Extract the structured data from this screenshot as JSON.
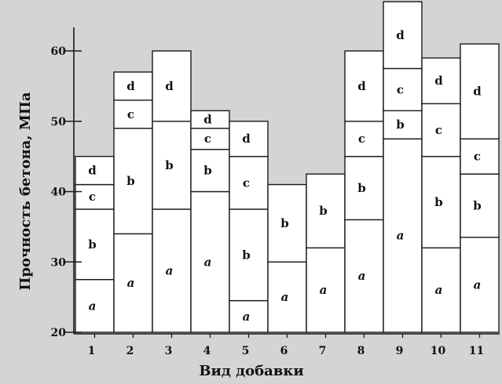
{
  "chart_data": {
    "type": "bar",
    "stacked": true,
    "title": "",
    "xlabel": "Вид добавки",
    "ylabel": "Прочность бетона, МПа",
    "ylim": [
      20,
      67
    ],
    "yticks": [
      20,
      30,
      40,
      50,
      60
    ],
    "categories": [
      "1",
      "2",
      "3",
      "4",
      "5",
      "6",
      "7",
      "8",
      "9",
      "10",
      "11"
    ],
    "stacks": [
      [
        {
          "label": "a",
          "from": 20,
          "to": 27.5
        },
        {
          "label": "b",
          "from": 27.5,
          "to": 37.5
        },
        {
          "label": "c",
          "from": 37.5,
          "to": 41
        },
        {
          "label": "d",
          "from": 41,
          "to": 45
        }
      ],
      [
        {
          "label": "a",
          "from": 20,
          "to": 34
        },
        {
          "label": "b",
          "from": 34,
          "to": 49
        },
        {
          "label": "c",
          "from": 49,
          "to": 53
        },
        {
          "label": "d",
          "from": 53,
          "to": 57
        }
      ],
      [
        {
          "label": "a",
          "from": 20,
          "to": 37.5
        },
        {
          "label": "b",
          "from": 37.5,
          "to": 50
        },
        {
          "label": "d",
          "from": 50,
          "to": 60
        }
      ],
      [
        {
          "label": "a",
          "from": 20,
          "to": 40
        },
        {
          "label": "b",
          "from": 40,
          "to": 46
        },
        {
          "label": "c",
          "from": 46,
          "to": 49
        },
        {
          "label": "d",
          "from": 49,
          "to": 51.5
        }
      ],
      [
        {
          "label": "a",
          "from": 20,
          "to": 24.5
        },
        {
          "label": "b",
          "from": 24.5,
          "to": 37.5
        },
        {
          "label": "c",
          "from": 37.5,
          "to": 45
        },
        {
          "label": "d",
          "from": 45,
          "to": 50
        }
      ],
      [
        {
          "label": "a",
          "from": 20,
          "to": 30
        },
        {
          "label": "b",
          "from": 30,
          "to": 41
        }
      ],
      [
        {
          "label": "a",
          "from": 20,
          "to": 32
        },
        {
          "label": "b",
          "from": 32,
          "to": 42.5
        }
      ],
      [
        {
          "label": "a",
          "from": 20,
          "to": 36
        },
        {
          "label": "b",
          "from": 36,
          "to": 45
        },
        {
          "label": "c",
          "from": 45,
          "to": 50
        },
        {
          "label": "d",
          "from": 50,
          "to": 60
        }
      ],
      [
        {
          "label": "a",
          "from": 20,
          "to": 47.5
        },
        {
          "label": "b",
          "from": 47.5,
          "to": 51.5
        },
        {
          "label": "c",
          "from": 51.5,
          "to": 57.5
        },
        {
          "label": "d",
          "from": 57.5,
          "to": 67
        }
      ],
      [
        {
          "label": "a",
          "from": 20,
          "to": 32
        },
        {
          "label": "b",
          "from": 32,
          "to": 45
        },
        {
          "label": "c",
          "from": 45,
          "to": 52.5
        },
        {
          "label": "d",
          "from": 52.5,
          "to": 59
        }
      ],
      [
        {
          "label": "a",
          "from": 20,
          "to": 33.5
        },
        {
          "label": "b",
          "from": 33.5,
          "to": 42.5
        },
        {
          "label": "c",
          "from": 42.5,
          "to": 47.5
        },
        {
          "label": "d",
          "from": 47.5,
          "to": 61
        }
      ]
    ],
    "grid": false,
    "legend": "none"
  },
  "colors": {
    "background": "#d4d4d2",
    "bar_fill": "#ffffff",
    "line": "#1a1a1a"
  }
}
